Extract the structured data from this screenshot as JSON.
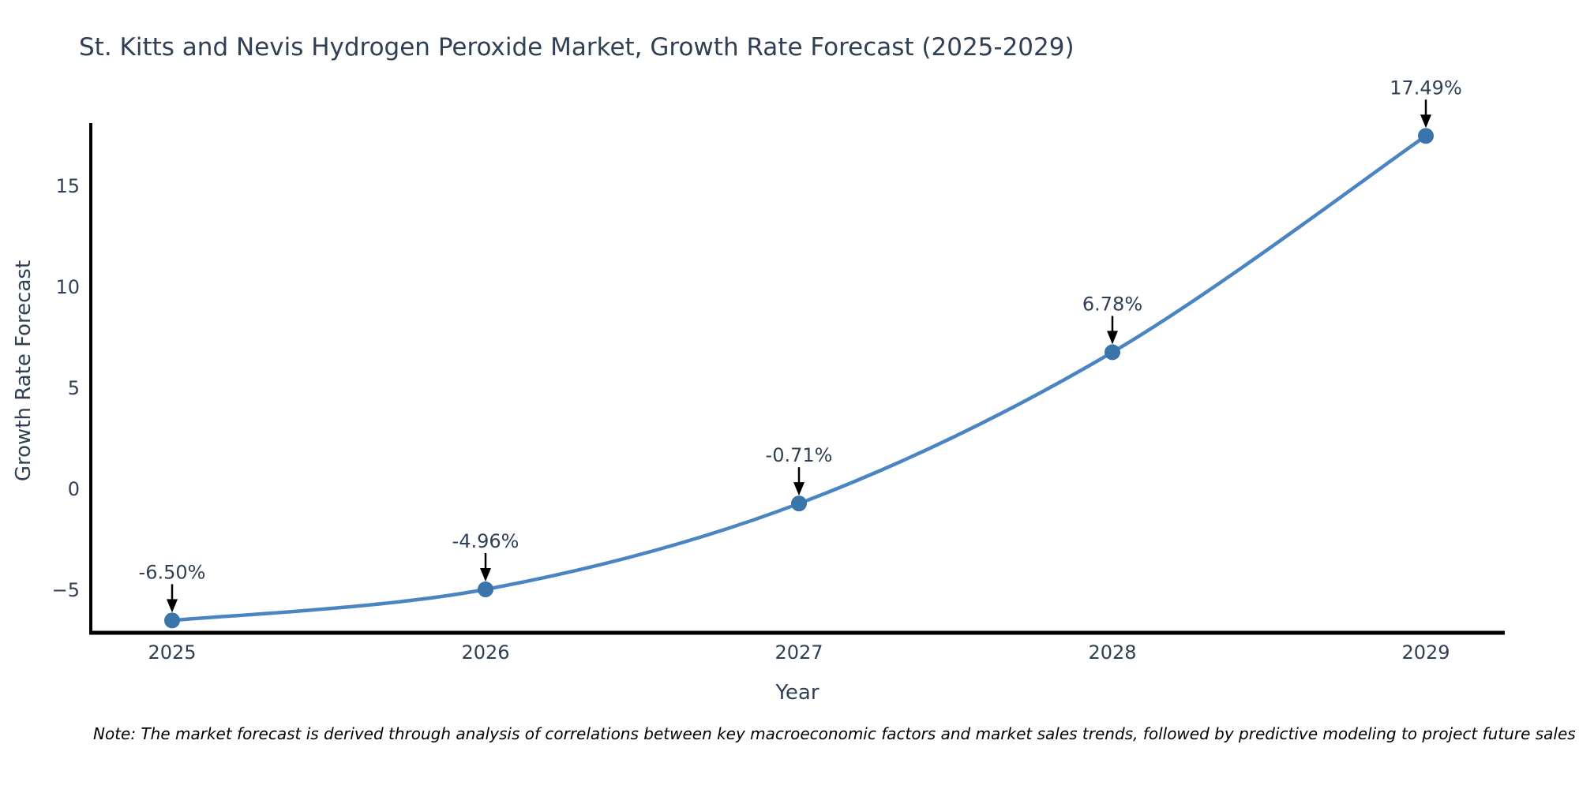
{
  "note": "Note: The market forecast is derived through analysis of correlations between key macroeconomic factors and market sales trends, followed by predictive modeling to project future sales",
  "chart_data": {
    "type": "line",
    "title": "St. Kitts and Nevis Hydrogen Peroxide Market, Growth Rate Forecast (2025-2029)",
    "xlabel": "Year",
    "ylabel": "Growth Rate Forecast",
    "x": [
      2025,
      2026,
      2027,
      2028,
      2029
    ],
    "categories": [
      "2025",
      "2026",
      "2027",
      "2028",
      "2029"
    ],
    "series": [
      {
        "name": "Growth Rate Forecast",
        "values": [
          -6.5,
          -4.96,
          -0.71,
          6.78,
          17.49
        ],
        "point_labels": [
          "-6.50%",
          "-4.96%",
          "-0.71%",
          "6.78%",
          "17.49%"
        ]
      }
    ],
    "ytick_values": [
      -5,
      0,
      5,
      10,
      15
    ],
    "ytick_labels": [
      "−5",
      "0",
      "5",
      "10",
      "15"
    ],
    "ylim": [
      -7.3,
      18.5
    ],
    "grid": false,
    "legend_position": "none",
    "curve": "spline",
    "annotations_have_arrows": true,
    "colors": {
      "line": "#4a85c2",
      "marker": "#3b73ab",
      "axis": "#000000",
      "text": "#2f3f54",
      "arrow": "#000000",
      "background": "#ffffff"
    }
  }
}
